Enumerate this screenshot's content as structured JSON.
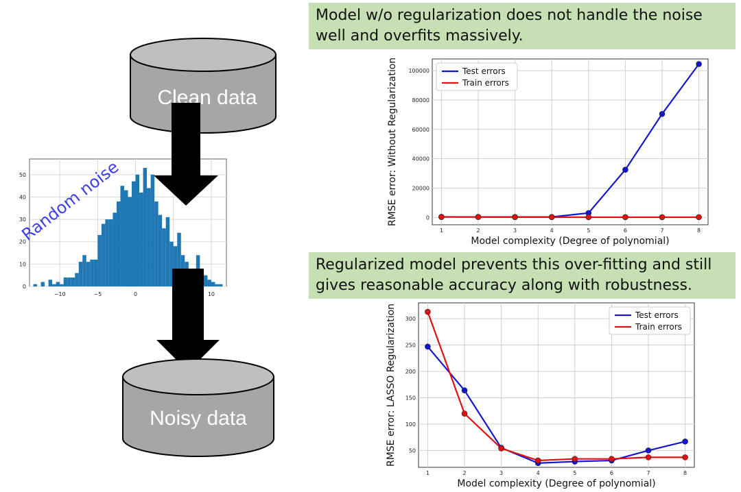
{
  "diagram": {
    "top_cylinder_label": "Clean data",
    "bottom_cylinder_label": "Noisy data",
    "noise_label": "Random noise",
    "colors": {
      "cylinder_fill": "#a6a6a6",
      "cylinder_top": "#bfbfbf",
      "arrow": "#000000",
      "noise_text": "#3c3cf0",
      "histogram_bar": "#1f77b4"
    }
  },
  "callouts": {
    "top": "Model w/o regularization does not handle the noise well and overfits massively.",
    "bottom": "Regularized model prevents this over-fitting and still gives reasonable accuracy along with robustness.",
    "background": "#c6e0b4"
  },
  "chart_data": [
    {
      "type": "histogram",
      "x_ticks": [
        "−10",
        "−5",
        "0",
        "5",
        "10"
      ],
      "x_range": [
        -14,
        12
      ],
      "y_ticks": [
        "0",
        "10",
        "20",
        "30",
        "40",
        "50"
      ],
      "y_range": [
        0,
        57
      ],
      "bins": [
        [
          -13.5,
          1
        ],
        [
          -13,
          0
        ],
        [
          -12.5,
          2
        ],
        [
          -12,
          0
        ],
        [
          -11.5,
          3
        ],
        [
          -11,
          1
        ],
        [
          -10.5,
          2
        ],
        [
          -10,
          1
        ],
        [
          -9.5,
          4
        ],
        [
          -9,
          4
        ],
        [
          -8.5,
          4
        ],
        [
          -8,
          6
        ],
        [
          -7.5,
          11
        ],
        [
          -7,
          14
        ],
        [
          -6.5,
          11
        ],
        [
          -6,
          12
        ],
        [
          -5.5,
          12
        ],
        [
          -5,
          23
        ],
        [
          -4.5,
          28
        ],
        [
          -4,
          30
        ],
        [
          -3.5,
          30
        ],
        [
          -3,
          33
        ],
        [
          -2.5,
          38
        ],
        [
          -2,
          45
        ],
        [
          -1.5,
          43
        ],
        [
          -1,
          40
        ],
        [
          -0.5,
          47
        ],
        [
          0,
          50
        ],
        [
          0.5,
          42
        ],
        [
          1,
          53
        ],
        [
          1.5,
          44
        ],
        [
          2,
          50
        ],
        [
          2.5,
          38
        ],
        [
          3,
          32
        ],
        [
          3.5,
          26
        ],
        [
          4,
          31
        ],
        [
          4.5,
          20
        ],
        [
          5,
          18
        ],
        [
          5.5,
          24
        ],
        [
          6,
          14
        ],
        [
          6.5,
          11
        ],
        [
          7,
          6
        ],
        [
          7.5,
          8
        ],
        [
          8,
          14
        ],
        [
          8.5,
          6
        ],
        [
          9,
          5
        ],
        [
          9.5,
          3
        ],
        [
          10,
          2
        ],
        [
          10.5,
          1
        ],
        [
          11,
          1
        ]
      ]
    },
    {
      "type": "line",
      "x": [
        1,
        2,
        3,
        4,
        5,
        6,
        7,
        8
      ],
      "xlabel": "Model complexity (Degree of polynomial)",
      "ylabel": "RMSE error: Without Regularization",
      "ylim": [
        -5000,
        108000
      ],
      "y_ticks": [
        0,
        20000,
        40000,
        60000,
        80000,
        100000
      ],
      "legend_position": "top-left",
      "grid": true,
      "series": [
        {
          "name": "Test errors",
          "color": "#1515d0",
          "values": [
            400,
            350,
            300,
            300,
            3000,
            32500,
            70500,
            104500
          ]
        },
        {
          "name": "Train errors",
          "color": "#e01010",
          "values": [
            300,
            250,
            200,
            200,
            150,
            150,
            150,
            150
          ]
        }
      ]
    },
    {
      "type": "line",
      "x": [
        1,
        2,
        3,
        4,
        5,
        6,
        7,
        8
      ],
      "xlabel": "Model complexity (Degree of polynomial)",
      "ylabel": "RMSE error: LASSO Regularization",
      "ylim": [
        18,
        330
      ],
      "y_ticks": [
        50,
        100,
        150,
        200,
        250,
        300
      ],
      "legend_position": "top-right",
      "grid": true,
      "series": [
        {
          "name": "Test errors",
          "color": "#1515d0",
          "values": [
            247,
            164,
            55,
            26,
            29,
            31,
            50,
            67
          ]
        },
        {
          "name": "Train errors",
          "color": "#e01010",
          "values": [
            313,
            120,
            54,
            31,
            34,
            34,
            37,
            37
          ]
        }
      ]
    }
  ]
}
